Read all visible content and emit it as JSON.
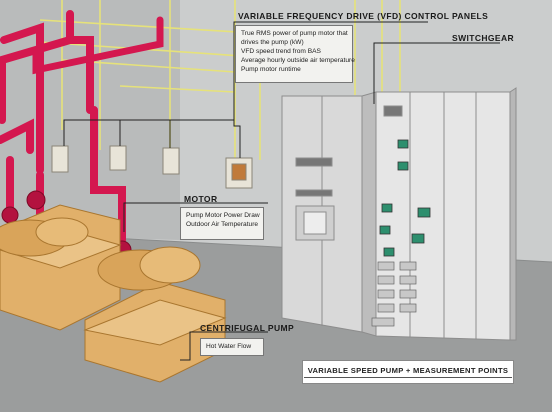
{
  "callouts": {
    "vfd": {
      "title": "VARIABLE FREQUENCY DRIVE (VFD) CONTROL PANELS",
      "lines": [
        "True RMS power of pump motor that",
        "drives the pump (kW)",
        "VFD speed trend from BAS",
        "Average hourly outside air temperature",
        "Pump motor runtime"
      ]
    },
    "switchgear": {
      "title": "SWITCHGEAR"
    },
    "motor": {
      "title": "MOTOR",
      "lines": [
        "Pump Motor Power Draw",
        "Outdoor Air Temperature"
      ]
    },
    "pump": {
      "title": "CENTRIFUGAL PUMP",
      "lines": [
        "Hot Water Flow"
      ]
    }
  },
  "footer_label": "VARIABLE SPEED PUMP + MEASUREMENT POINTS",
  "colors": {
    "pipe": "#d4174f",
    "pump_body": "#e1b06a",
    "wire": "#e6e27a",
    "floor": "#9b9d9d",
    "wall": "#c9cbcb",
    "cabinet": "#e4e4e4"
  }
}
